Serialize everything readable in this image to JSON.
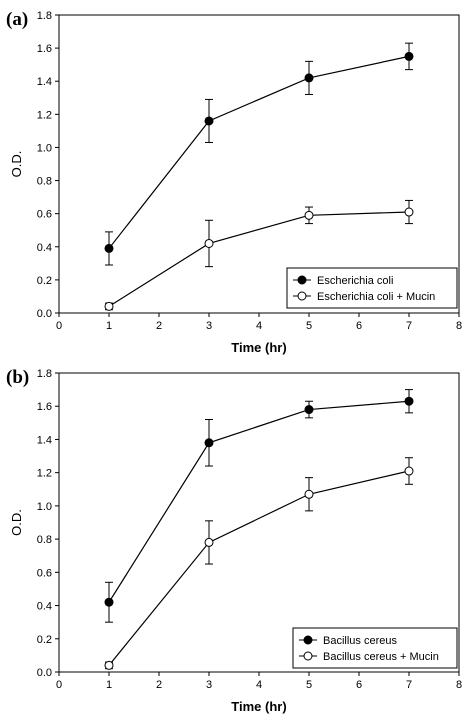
{
  "chart_data": [
    {
      "type": "line",
      "panel_label": "(a)",
      "xlabel": "Time (hr)",
      "ylabel": "O.D.",
      "xlim": [
        0,
        8
      ],
      "ylim": [
        0,
        1.8
      ],
      "xticks": [
        "0",
        "1",
        "2",
        "3",
        "4",
        "5",
        "6",
        "7",
        "8"
      ],
      "yticks": [
        "0.0",
        "0.2",
        "0.4",
        "0.6",
        "0.8",
        "1.0",
        "1.2",
        "1.4",
        "1.6",
        "1.8"
      ],
      "grid": false,
      "legend_position": "bottom-right",
      "series": [
        {
          "name": "Escherichia coli",
          "marker": "filled-circle",
          "x": [
            1,
            3,
            5,
            7
          ],
          "y": [
            0.39,
            1.16,
            1.42,
            1.55
          ],
          "err": [
            0.1,
            0.13,
            0.1,
            0.08
          ]
        },
        {
          "name": "Escherichia coli + Mucin",
          "marker": "open-circle",
          "x": [
            1,
            3,
            5,
            7
          ],
          "y": [
            0.04,
            0.42,
            0.59,
            0.61
          ],
          "err": [
            0.02,
            0.14,
            0.05,
            0.07
          ]
        }
      ]
    },
    {
      "type": "line",
      "panel_label": "(b)",
      "xlabel": "Time (hr)",
      "ylabel": "O.D.",
      "xlim": [
        0,
        8
      ],
      "ylim": [
        0,
        1.8
      ],
      "xticks": [
        "0",
        "1",
        "2",
        "3",
        "4",
        "5",
        "6",
        "7",
        "8"
      ],
      "yticks": [
        "0.0",
        "0.2",
        "0.4",
        "0.6",
        "0.8",
        "1.0",
        "1.2",
        "1.4",
        "1.6",
        "1.8"
      ],
      "grid": false,
      "legend_position": "bottom-right",
      "series": [
        {
          "name": "Bacillus cereus",
          "marker": "filled-circle",
          "x": [
            1,
            3,
            5,
            7
          ],
          "y": [
            0.42,
            1.38,
            1.58,
            1.63
          ],
          "err": [
            0.12,
            0.14,
            0.05,
            0.07
          ]
        },
        {
          "name": "Bacillus cereus + Mucin",
          "marker": "open-circle",
          "x": [
            1,
            3,
            5,
            7
          ],
          "y": [
            0.04,
            0.78,
            1.07,
            1.21
          ],
          "err": [
            0.02,
            0.13,
            0.1,
            0.08
          ]
        }
      ]
    }
  ]
}
